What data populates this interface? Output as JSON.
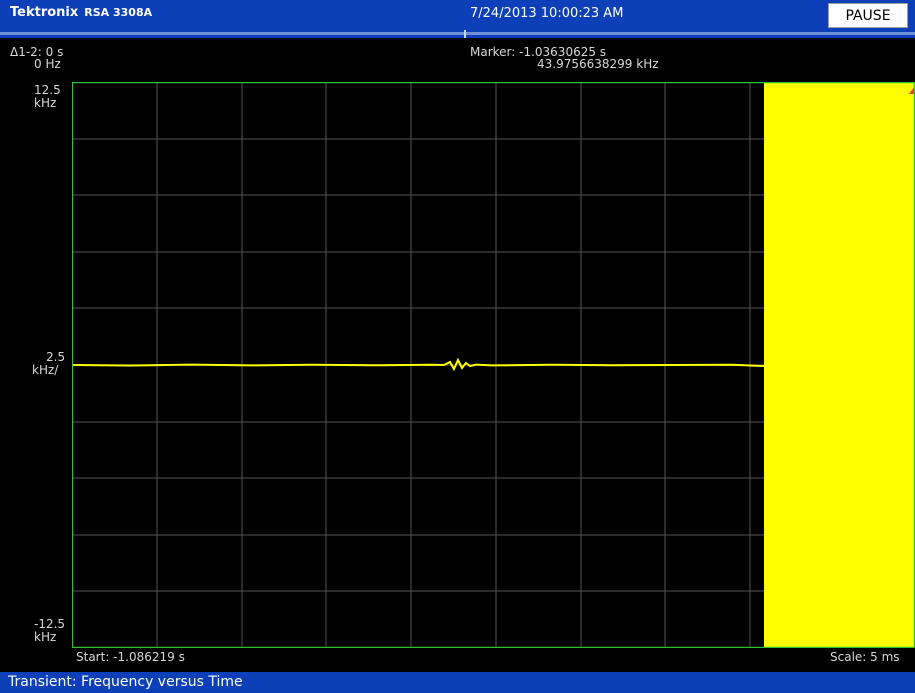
{
  "header": {
    "brand": "Tektronix",
    "model": "RSA 3308A",
    "datetime": "7/24/2013 10:00:23 AM",
    "pause_label": "PAUSE"
  },
  "readouts": {
    "delta_time": "Δ1-2: 0 s",
    "delta_freq": "0 Hz",
    "marker_time": "Marker: -1.03630625 s",
    "marker_freq": "43.9756638299 kHz"
  },
  "axis": {
    "y_top_value": "12.5",
    "y_top_unit": "kHz",
    "y_scale_value": "2.5",
    "y_scale_unit": "kHz/",
    "y_bottom_value": "-12.5",
    "y_bottom_unit": "kHz",
    "x_start": "Start: -1.086219 s",
    "x_scale": "Scale: 5 ms"
  },
  "status": {
    "mode": "Transient: Frequency versus Time"
  },
  "colors": {
    "trace": "#ffff00",
    "grid": "#555555",
    "plot_border": "#2fbf2f",
    "title_bar": "#0d3fb8"
  }
}
